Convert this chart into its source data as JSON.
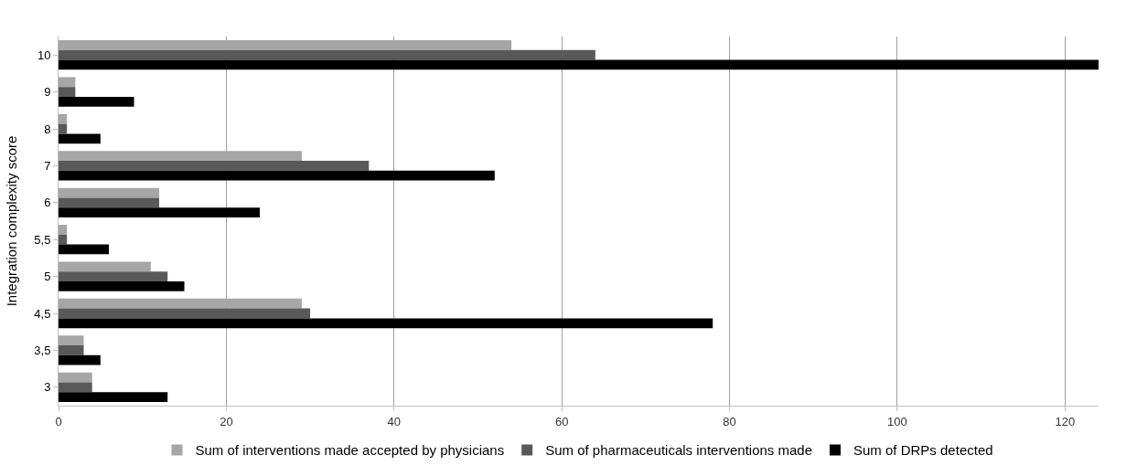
{
  "chart_data": {
    "type": "bar",
    "orientation": "horizontal",
    "ylabel": "Integration complexity score",
    "categories": [
      "10",
      "9",
      "8",
      "7",
      "6",
      "5,5",
      "5",
      "4,5",
      "3,5",
      "3"
    ],
    "series": [
      {
        "name": "Sum of interventions made accepted by physicians",
        "color": "#a6a6a6",
        "values": [
          54,
          2,
          1,
          29,
          12,
          1,
          11,
          29,
          3,
          4
        ]
      },
      {
        "name": "Sum of pharmaceuticals interventions made",
        "color": "#595959",
        "values": [
          64,
          2,
          1,
          37,
          12,
          1,
          13,
          30,
          3,
          4
        ]
      },
      {
        "name": "Sum of DRPs detected",
        "color": "#000000",
        "values": [
          124,
          9,
          5,
          52,
          24,
          6,
          15,
          78,
          5,
          13
        ]
      }
    ],
    "xlim": [
      0,
      124
    ],
    "xticks": [
      0,
      20,
      40,
      60,
      80,
      100,
      120
    ],
    "grid": "x",
    "legend": "bottom"
  }
}
